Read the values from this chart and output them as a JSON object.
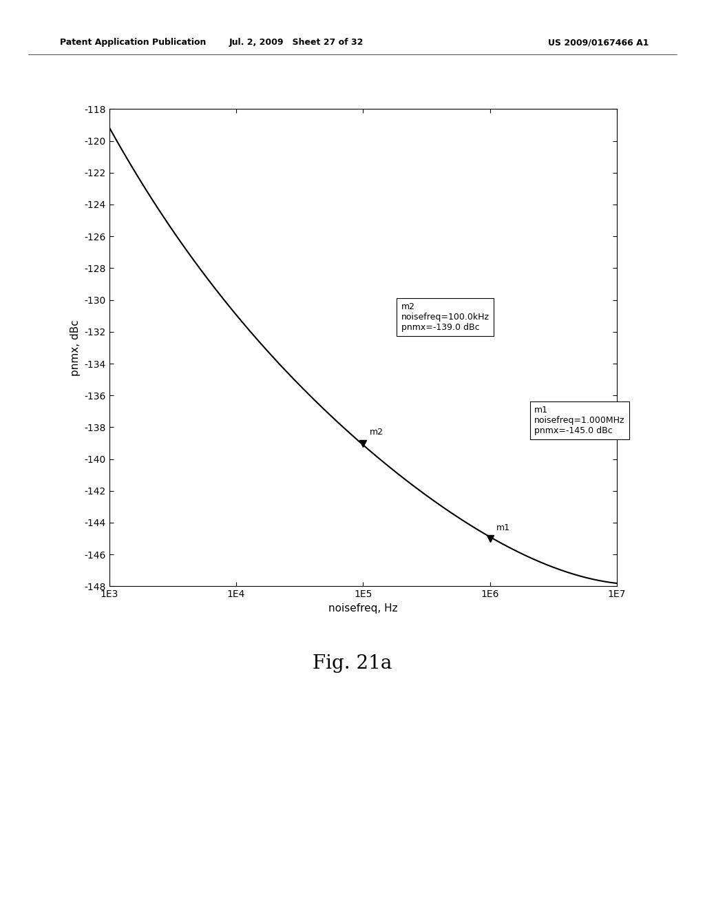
{
  "title": "",
  "xlabel": "noisefreq, Hz",
  "ylabel": "pnmx, dBc",
  "xlim_log": [
    3,
    7
  ],
  "ylim": [
    -148,
    -118
  ],
  "yticks": [
    -148,
    -146,
    -144,
    -142,
    -140,
    -138,
    -136,
    -134,
    -132,
    -130,
    -128,
    -126,
    -124,
    -122,
    -120,
    -118
  ],
  "xtick_labels": [
    "1E3",
    "1E4",
    "1E5",
    "1E6",
    "1E7"
  ],
  "xtick_positions": [
    3,
    4,
    5,
    6,
    7
  ],
  "curve_color": "#000000",
  "background_color": "#ffffff",
  "marker1_freq_log": 6.0,
  "marker1_pnmx": -145.0,
  "marker1_label": "m1",
  "marker1_box_text": "m1\nnoisefreq=1.000MHz\npnmx=-145.0 dBc",
  "marker2_freq_log": 5.0,
  "marker2_pnmx": -139.0,
  "marker2_label": "m2",
  "marker2_box_text": "m2\nnoisefreq=100.0kHz\npnmx=-139.0 dBc",
  "header_left": "Patent Application Publication",
  "header_center": "Jul. 2, 2009   Sheet 27 of 32",
  "header_right": "US 2009/0167466 A1",
  "fig_label": "Fig. 21a",
  "line_width": 1.5,
  "curve_x_pts": [
    3.0,
    3.5,
    4.0,
    4.5,
    5.0,
    5.5,
    6.0,
    6.5,
    7.0
  ],
  "curve_y_pts": [
    -119.2,
    -125.5,
    -131.0,
    -135.5,
    -139.0,
    -142.2,
    -145.0,
    -146.8,
    -147.8
  ]
}
